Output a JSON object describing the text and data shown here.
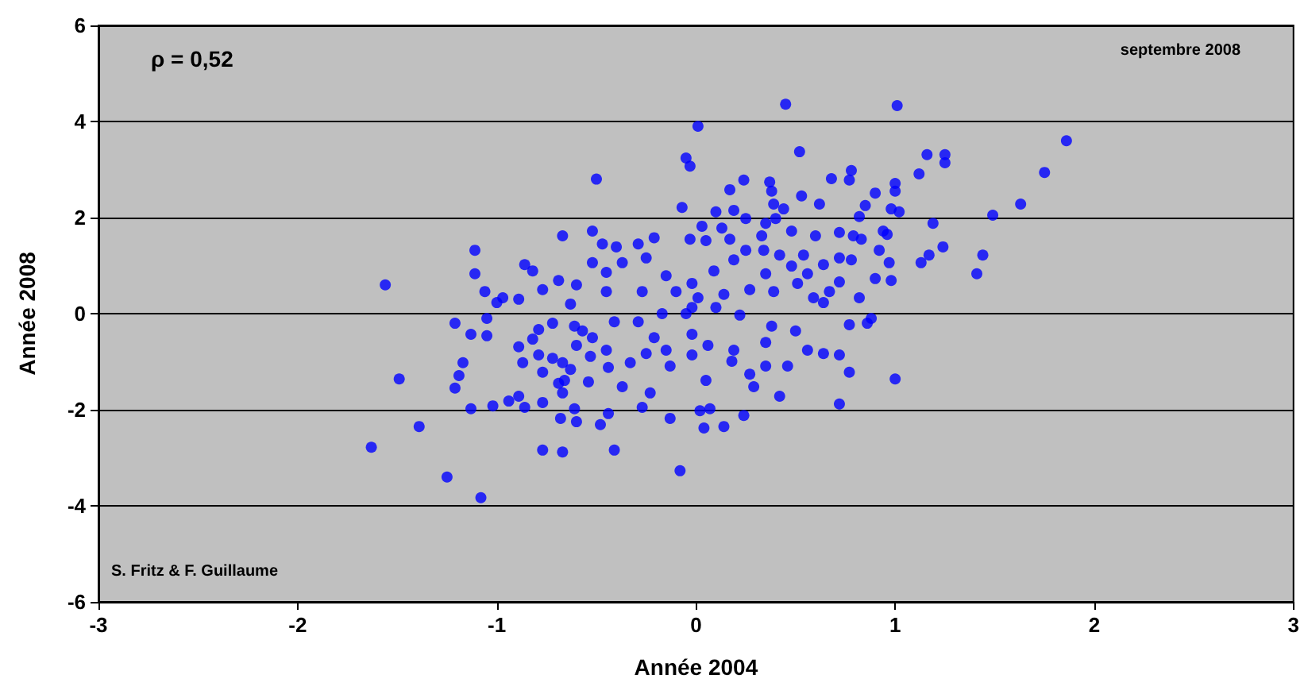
{
  "chart_data": {
    "type": "scatter",
    "xlabel": "Année 2004",
    "ylabel": "Année 2008",
    "annotations": [
      "ρ = 0,52",
      "septembre 2008",
      "S. Fritz & F. Guillaume"
    ],
    "xlim": [
      -3,
      3
    ],
    "xticks": [
      -3,
      -2,
      -1,
      0,
      1,
      2,
      3
    ],
    "ylim": [
      -6,
      6
    ],
    "yticks": [
      -6,
      -4,
      -2,
      0,
      2,
      4,
      6
    ],
    "grid": "y",
    "marker": "circle",
    "series": [
      {
        "color": "#0000ff",
        "x": [
          -1.63,
          -1.56,
          -1.49,
          -1.39,
          -1.25,
          -1.08,
          -1.11,
          -1.11,
          -1.06,
          -1.0,
          -0.97,
          -0.89,
          -0.86,
          -0.82,
          -0.77,
          -0.69,
          -0.67,
          -0.6,
          -0.52,
          -0.47,
          -0.4,
          -0.29,
          -0.21,
          -0.25,
          -0.37,
          -0.52,
          -0.45,
          -0.45,
          -0.63,
          -0.27,
          -1.21,
          -1.13,
          -1.05,
          -1.05,
          -1.17,
          -1.19,
          -1.21,
          -1.13,
          -1.02,
          -0.94,
          -0.89,
          -0.86,
          -0.77,
          -0.89,
          -0.82,
          -0.87,
          -0.79,
          -0.77,
          -0.72,
          -0.67,
          -0.69,
          -0.66,
          -0.63,
          -0.67,
          -0.54,
          -0.61,
          -0.68,
          -0.6,
          -0.48,
          -0.44,
          -0.77,
          -0.67,
          -0.41,
          -0.08,
          -0.13,
          -0.27,
          -0.37,
          -0.23,
          -0.33,
          -0.44,
          -0.53,
          -0.6,
          -0.61,
          -0.57,
          -0.52,
          -0.45,
          -0.41,
          -0.29,
          -0.21,
          -0.15,
          -0.13,
          -0.25,
          -0.72,
          -0.79,
          -0.15,
          -0.1,
          -0.05,
          -0.17,
          -0.5,
          0.45,
          1.01,
          0.01,
          0.52,
          1.16,
          1.25,
          1.25,
          -0.05,
          -0.03,
          0.78,
          0.77,
          0.68,
          1.12,
          1.0,
          1.0,
          0.9,
          0.24,
          0.17,
          0.37,
          0.38,
          0.53,
          0.62,
          0.39,
          0.44,
          0.85,
          0.82,
          0.98,
          1.02,
          1.19,
          1.49,
          -0.07,
          0.1,
          0.19,
          0.4,
          0.48,
          0.35,
          0.25,
          0.03,
          0.13,
          -0.03,
          0.05,
          0.17,
          0.33,
          0.6,
          0.72,
          0.79,
          0.83,
          0.94,
          0.96,
          0.92,
          1.17,
          1.24,
          1.13,
          1.44,
          1.41,
          0.97,
          0.9,
          0.98,
          0.72,
          0.78,
          0.64,
          0.54,
          0.48,
          0.42,
          0.34,
          0.25,
          0.19,
          0.09,
          -0.02,
          0.01,
          0.14,
          0.27,
          0.39,
          0.51,
          0.59,
          0.67,
          0.82,
          0.35,
          0.56,
          0.72,
          -0.02,
          0.1,
          0.22,
          0.38,
          0.5,
          0.77,
          0.86,
          0.88,
          0.64,
          -0.02,
          0.06,
          0.19,
          0.35,
          0.56,
          0.64,
          0.72,
          -0.02,
          0.18,
          0.27,
          0.35,
          0.46,
          0.77,
          1.0,
          0.05,
          0.29,
          0.42,
          0.72,
          0.02,
          0.07,
          0.24,
          0.04,
          0.14,
          1.86,
          1.75,
          1.63
        ],
        "values": [
          -2.78,
          0.6,
          -1.36,
          -2.35,
          -3.4,
          -3.83,
          1.32,
          0.83,
          0.46,
          0.23,
          0.33,
          0.3,
          1.02,
          0.89,
          0.5,
          0.69,
          1.62,
          0.6,
          1.72,
          1.45,
          1.39,
          1.45,
          1.58,
          1.16,
          1.06,
          1.06,
          0.86,
          0.46,
          0.2,
          0.46,
          -0.2,
          -0.43,
          -0.1,
          -0.46,
          -1.02,
          -1.29,
          -1.55,
          -1.98,
          -1.92,
          -1.82,
          -1.72,
          -1.95,
          -1.85,
          -0.69,
          -0.53,
          -1.02,
          -0.86,
          -1.22,
          -0.93,
          -1.02,
          -1.45,
          -1.39,
          -1.16,
          -1.65,
          -1.42,
          -1.98,
          -2.18,
          -2.25,
          -2.31,
          -2.08,
          -2.84,
          -2.88,
          -2.84,
          -3.27,
          -2.18,
          -1.95,
          -1.52,
          -1.65,
          -1.02,
          -1.12,
          -0.89,
          -0.66,
          -0.26,
          -0.36,
          -0.5,
          -0.76,
          -0.17,
          -0.17,
          -0.5,
          -0.76,
          -1.09,
          -0.83,
          -0.2,
          -0.33,
          0.79,
          0.46,
          0.0,
          0.0,
          2.8,
          4.36,
          4.33,
          3.9,
          3.37,
          3.31,
          3.31,
          3.14,
          3.24,
          3.07,
          2.98,
          2.78,
          2.81,
          2.91,
          2.71,
          2.55,
          2.51,
          2.78,
          2.58,
          2.74,
          2.55,
          2.45,
          2.28,
          2.28,
          2.18,
          2.25,
          2.02,
          2.18,
          2.12,
          1.88,
          2.05,
          2.21,
          2.12,
          2.15,
          1.98,
          1.72,
          1.88,
          1.98,
          1.82,
          1.78,
          1.55,
          1.52,
          1.55,
          1.62,
          1.62,
          1.69,
          1.62,
          1.55,
          1.72,
          1.65,
          1.32,
          1.22,
          1.39,
          1.06,
          1.22,
          0.83,
          1.06,
          0.73,
          0.69,
          1.16,
          1.12,
          1.02,
          1.22,
          0.99,
          1.22,
          1.32,
          1.32,
          1.12,
          0.89,
          0.63,
          0.33,
          0.4,
          0.5,
          0.46,
          0.63,
          0.33,
          0.46,
          0.33,
          0.83,
          0.83,
          0.66,
          0.13,
          0.13,
          -0.03,
          -0.26,
          -0.36,
          -0.23,
          -0.2,
          -0.1,
          0.23,
          -0.43,
          -0.66,
          -0.76,
          -0.6,
          -0.76,
          -0.83,
          -0.86,
          -0.86,
          -0.99,
          -1.26,
          -1.09,
          -1.09,
          -1.22,
          -1.36,
          -1.39,
          -1.52,
          -1.72,
          -1.88,
          -2.02,
          -1.98,
          -2.12,
          -2.38,
          -2.35,
          3.6,
          2.94,
          2.28
        ]
      }
    ]
  }
}
